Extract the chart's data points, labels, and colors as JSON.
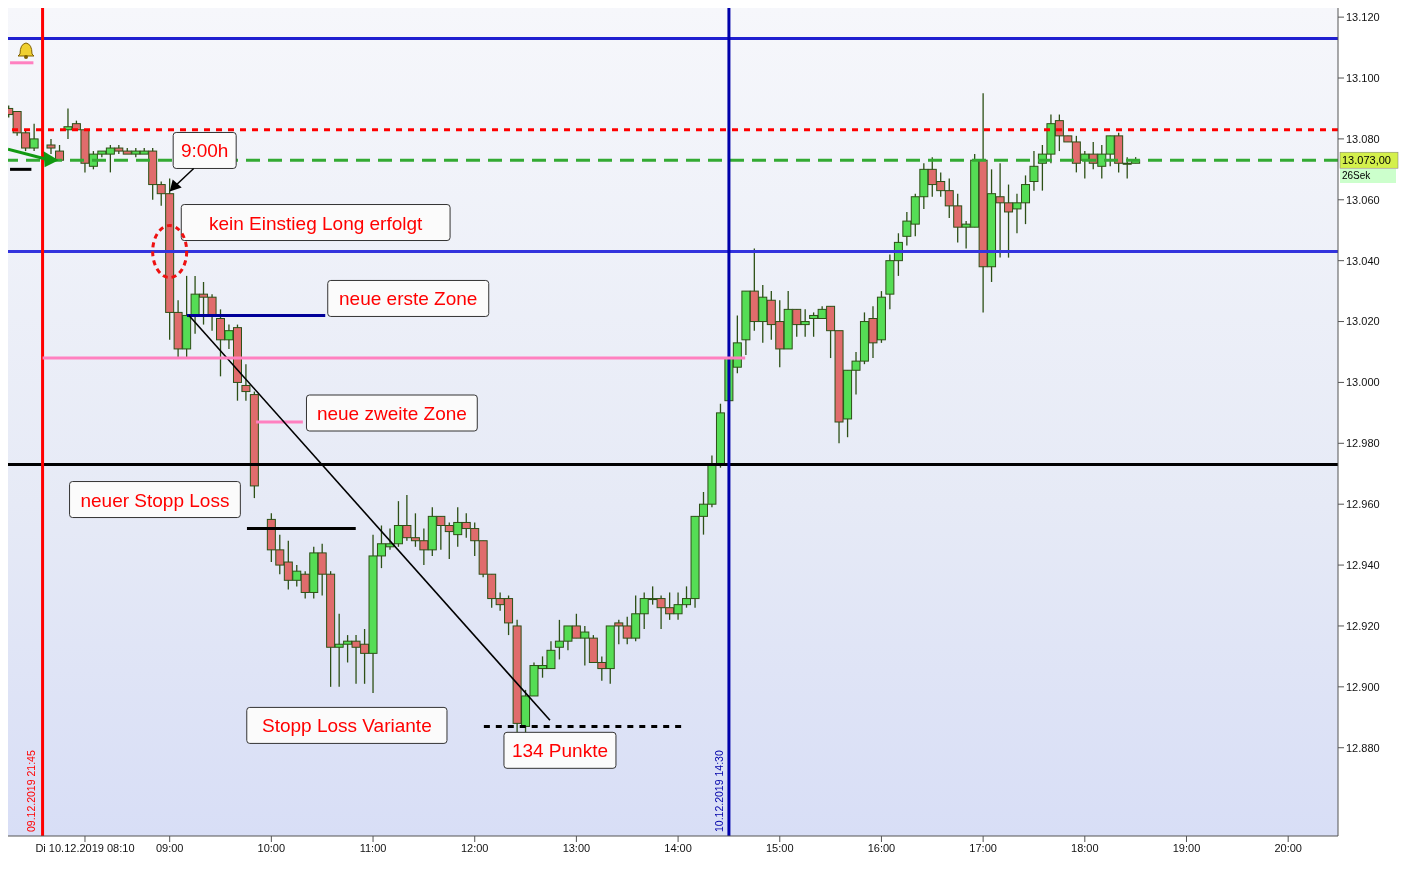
{
  "chart_data": {
    "type": "candlestick",
    "x": [
      7.417,
      7.5,
      7.583,
      7.667,
      7.833,
      7.917,
      8,
      8.083,
      8.167,
      8.25,
      8.333,
      8.417,
      8.5,
      8.583,
      8.667,
      8.75,
      8.833,
      8.917,
      9,
      9.083,
      9.167,
      9.25,
      9.333,
      9.417,
      9.5,
      9.583,
      9.667,
      9.75,
      9.833,
      10,
      10.083,
      10.167,
      10.25,
      10.333,
      10.417,
      10.5,
      10.583,
      10.667,
      10.75,
      10.833,
      10.917,
      11,
      11.083,
      11.167,
      11.25,
      11.333,
      11.417,
      11.5,
      11.583,
      11.667,
      11.75,
      11.833,
      11.917,
      12,
      12.083,
      12.167,
      12.25,
      12.333,
      12.417,
      12.5,
      12.583,
      12.667,
      12.75,
      12.833,
      12.917,
      13,
      13.083,
      13.167,
      13.25,
      13.333,
      13.417,
      13.5,
      13.583,
      13.667,
      13.75,
      13.833,
      13.917,
      14,
      14.083,
      14.167,
      14.25,
      14.333,
      14.417,
      14.5,
      14.583,
      14.667,
      14.75,
      14.833,
      14.917,
      15,
      15.083,
      15.167,
      15.25,
      15.333,
      15.417,
      15.5,
      15.583,
      15.667,
      15.75,
      15.833,
      15.917,
      16,
      16.083,
      16.167,
      16.25,
      16.333,
      16.417,
      16.5,
      16.583,
      16.667,
      16.75,
      16.833,
      16.917,
      17,
      17.083,
      17.167,
      17.25,
      17.333,
      17.417,
      17.5,
      17.583,
      17.667,
      17.75,
      17.833,
      17.917,
      18,
      18.083,
      18.167,
      18.25,
      18.333,
      18.417,
      18.5
    ],
    "ohlc": [
      [
        13090,
        13091,
        13087,
        13088
      ],
      [
        13089,
        13089,
        13081,
        13082
      ],
      [
        13082,
        13083,
        13076,
        13077
      ],
      [
        13077,
        13085,
        13076,
        13080
      ],
      [
        13078,
        13080,
        13075,
        13077
      ],
      [
        13076,
        13078,
        13073,
        13073
      ],
      [
        13083,
        13090,
        13080,
        13084
      ],
      [
        13085,
        13086,
        13083,
        13083
      ],
      [
        13083,
        13083,
        13069,
        13072
      ],
      [
        13071,
        13076,
        13070,
        13075
      ],
      [
        13075,
        13076,
        13074,
        13076
      ],
      [
        13075,
        13078,
        13069,
        13077
      ],
      [
        13077,
        13078,
        13075,
        13076
      ],
      [
        13076,
        13077,
        13075,
        13075
      ],
      [
        13075,
        13077,
        13074,
        13076
      ],
      [
        13075,
        13077,
        13075,
        13076
      ],
      [
        13076,
        13077,
        13060,
        13065
      ],
      [
        13065,
        13066,
        13058,
        13062
      ],
      [
        13062,
        13067,
        13014,
        13023
      ],
      [
        13023,
        13027,
        13008,
        13011
      ],
      [
        13011,
        13035,
        13008,
        13022
      ],
      [
        13022,
        13035,
        13016,
        13029
      ],
      [
        13029,
        13033,
        13019,
        13028
      ],
      [
        13028,
        13029,
        13017,
        13022
      ],
      [
        13021,
        13024,
        13002,
        13014
      ],
      [
        13014,
        13019,
        13011,
        13017
      ],
      [
        13018,
        13019,
        12994,
        13000
      ],
      [
        12999,
        13006,
        12994,
        12997
      ],
      [
        12996,
        12997,
        12962,
        12966
      ],
      [
        12955,
        12957,
        12941,
        12945
      ],
      [
        12945,
        12950,
        12937,
        12940
      ],
      [
        12941,
        12948,
        12932,
        12935
      ],
      [
        12935,
        12940,
        12933,
        12938
      ],
      [
        12937,
        12938,
        12929,
        12931
      ],
      [
        12931,
        12946,
        12929,
        12944
      ],
      [
        12944,
        12947,
        12930,
        12937
      ],
      [
        12937,
        12938,
        12900,
        12913
      ],
      [
        12913,
        12924,
        12900,
        12914
      ],
      [
        12914,
        12917,
        12908,
        12915
      ],
      [
        12915,
        12917,
        12901,
        12913
      ],
      [
        12914,
        12919,
        12901,
        12911
      ],
      [
        12911,
        12950,
        12898,
        12943
      ],
      [
        12943,
        12953,
        12939,
        12947
      ],
      [
        12946,
        12952,
        12945,
        12947
      ],
      [
        12947,
        12961,
        12946,
        12953
      ],
      [
        12953,
        12963,
        12948,
        12949
      ],
      [
        12949,
        12957,
        12946,
        12948
      ],
      [
        12948,
        12952,
        12940,
        12945
      ],
      [
        12945,
        12959,
        12943,
        12956
      ],
      [
        12956,
        12956,
        12945,
        12953
      ],
      [
        12953,
        12954,
        12942,
        12951
      ],
      [
        12950,
        12959,
        12946,
        12954
      ],
      [
        12954,
        12957,
        12949,
        12952
      ],
      [
        12952,
        12954,
        12943,
        12948
      ],
      [
        12948,
        12948,
        12936,
        12937
      ],
      [
        12937,
        12937,
        12926,
        12929
      ],
      [
        12929,
        12931,
        12925,
        12927
      ],
      [
        12929,
        12930,
        12917,
        12921
      ],
      [
        12920,
        12922,
        12885,
        12888
      ],
      [
        12887,
        12899,
        12885,
        12897
      ],
      [
        12897,
        12908,
        12897,
        12907
      ],
      [
        12906,
        12910,
        12903,
        12907
      ],
      [
        12906,
        12915,
        12906,
        12912
      ],
      [
        12913,
        12922,
        12909,
        12915
      ],
      [
        12915,
        12920,
        12912,
        12920
      ],
      [
        12920,
        12924,
        12916,
        12916
      ],
      [
        12916,
        12920,
        12907,
        12918
      ],
      [
        12916,
        12917,
        12908,
        12908
      ],
      [
        12908,
        12910,
        12902,
        12906
      ],
      [
        12906,
        12920,
        12901,
        12920
      ],
      [
        12921,
        12922,
        12914,
        12920
      ],
      [
        12920,
        12923,
        12914,
        12916
      ],
      [
        12916,
        12930,
        12915,
        12924
      ],
      [
        12924,
        12931,
        12919,
        12929
      ],
      [
        12929,
        12933,
        12927,
        12929
      ],
      [
        12929,
        12930,
        12919,
        12926
      ],
      [
        12926,
        12931,
        12922,
        12924
      ],
      [
        12924,
        12931,
        12922,
        12927
      ],
      [
        12927,
        12933,
        12926,
        12929
      ],
      [
        12929,
        12956,
        12926,
        12956
      ],
      [
        12956,
        12964,
        12950,
        12960
      ],
      [
        12960,
        12976,
        12959,
        12973
      ],
      [
        12973,
        12993,
        12972,
        12990
      ],
      [
        12994,
        13008,
        12994,
        13008
      ],
      [
        13005,
        13022,
        13003,
        13013
      ],
      [
        13014,
        13030,
        13009,
        13030
      ],
      [
        13030,
        13044,
        13017,
        13020
      ],
      [
        13020,
        13032,
        13013,
        13028
      ],
      [
        13027,
        13030,
        13014,
        13019
      ],
      [
        13020,
        13027,
        13005,
        13011
      ],
      [
        13011,
        13030,
        13011,
        13024
      ],
      [
        13024,
        13024,
        13015,
        13019
      ],
      [
        13019,
        13024,
        13015,
        13020
      ],
      [
        13021,
        13023,
        13015,
        13022
      ],
      [
        13021,
        13025,
        13021,
        13024
      ],
      [
        13025,
        13025,
        13008,
        13017
      ],
      [
        13017,
        13017,
        12980,
        12987
      ],
      [
        12988,
        13004,
        12982,
        13004
      ],
      [
        13004,
        13010,
        12996,
        13007
      ],
      [
        13007,
        13023,
        13006,
        13020
      ],
      [
        13021,
        13025,
        13008,
        13013
      ],
      [
        13014,
        13030,
        13013,
        13028
      ],
      [
        13029,
        13042,
        13024,
        13040
      ],
      [
        13040,
        13049,
        13035,
        13046
      ],
      [
        13048,
        13056,
        13045,
        13053
      ],
      [
        13052,
        13062,
        13048,
        13061
      ],
      [
        13061,
        13072,
        13057,
        13070
      ],
      [
        13070,
        13074,
        13061,
        13065
      ],
      [
        13066,
        13069,
        13061,
        13063
      ],
      [
        13063,
        13067,
        13054,
        13058
      ],
      [
        13058,
        13062,
        13046,
        13051
      ],
      [
        13051,
        13053,
        13044,
        13052
      ],
      [
        13051,
        13075,
        13051,
        13073
      ],
      [
        13073,
        13095,
        13023,
        13038
      ],
      [
        13038,
        13070,
        13033,
        13062
      ],
      [
        13061,
        13072,
        13041,
        13059
      ],
      [
        13059,
        13065,
        13041,
        13056
      ],
      [
        13057,
        13062,
        13049,
        13059
      ],
      [
        13059,
        13068,
        13052,
        13065
      ],
      [
        13066,
        13076,
        13063,
        13071
      ],
      [
        13072,
        13078,
        13063,
        13075
      ],
      [
        13075,
        13088,
        13072,
        13085
      ],
      [
        13086,
        13088,
        13076,
        13081
      ],
      [
        13081,
        13081,
        13079,
        13079
      ],
      [
        13079,
        13081,
        13069,
        13072
      ],
      [
        13073,
        13076,
        13067,
        13075
      ],
      [
        13075,
        13079,
        13070,
        13072
      ],
      [
        13071,
        13078,
        13067,
        13075
      ],
      [
        13075,
        13081,
        13071,
        13081
      ],
      [
        13081,
        13082,
        13069,
        13072
      ],
      [
        13072,
        13074,
        13067,
        13072
      ],
      [
        13072,
        13074,
        13072,
        13073
      ]
    ],
    "series": [
      {
        "type": "line",
        "x": [
          9.17,
          10.53
        ],
        "values": [
          13022,
          13022
        ],
        "color": "#000099"
      },
      {
        "type": "line",
        "x": [
          9.85,
          10.31
        ],
        "values": [
          12987,
          12987
        ],
        "color": "#ff80c0"
      },
      {
        "type": "line",
        "x": [
          9.76,
          10.83
        ],
        "values": [
          12952,
          12952
        ],
        "color": "#000000"
      },
      {
        "type": "line",
        "x": [
          12.09,
          14.03
        ],
        "values": [
          12887,
          12887
        ],
        "color": "#000000",
        "line_style": "dotted"
      },
      {
        "type": "line",
        "x": [
          9.19,
          12.74
        ],
        "values": [
          13022,
          12889
        ],
        "color": "#000000"
      },
      {
        "type": "line",
        "x": [
          7.43,
          7.66
        ],
        "values": [
          13105,
          13105
        ],
        "color": "#ff80c0"
      },
      {
        "type": "line",
        "x": [
          7.43,
          7.64
        ],
        "values": [
          13070,
          13070
        ],
        "color": "#000000"
      },
      {
        "type": "line",
        "x": [
          7.75,
          14.66
        ],
        "values": [
          13008,
          13008
        ],
        "color": "#ff80c0"
      }
    ],
    "ref_lines": [
      {
        "axis": "y",
        "value": 13113,
        "color": "#2020d0"
      },
      {
        "axis": "y",
        "value": 13083,
        "color": "#ff0000",
        "line_style": "dotted"
      },
      {
        "axis": "y",
        "value": 13073,
        "color": "#33aa33",
        "line_style": "dashed",
        "label": "13.073,00"
      },
      {
        "axis": "y",
        "value": 13043,
        "color": "#3333dd"
      },
      {
        "axis": "y",
        "value": 12973,
        "color": "#000000"
      },
      {
        "axis": "x",
        "value": 7.75,
        "color": "#ff0000"
      },
      {
        "axis": "x",
        "value": 14.5,
        "color": "#0000aa",
        "label": "10.12.2019 14:30"
      }
    ],
    "annotations": [
      {
        "text": "9:00h",
        "x": 9,
        "y": 13067
      },
      {
        "text": "kein Einstieg Long erfolgt",
        "x": 9,
        "y": 13043
      },
      {
        "text": "neue erste Zone",
        "x": 10.53,
        "y": 13022
      },
      {
        "text": "neue zweite Zone",
        "x": 10.31,
        "y": 12987
      },
      {
        "text": "neuer Stopp Loss",
        "x": 9.76,
        "y": 12952
      },
      {
        "text": "Stopp Loss Variante",
        "x": 12.09,
        "y": 12887
      },
      {
        "text": "134 Punkte",
        "x": 12.74,
        "y": 12889
      },
      "09.12.2019 21:45",
      "26Sek"
    ],
    "xlim": [
      7.41,
      20.49
    ],
    "xticks": [
      {
        "value": 8.167,
        "label": "Di 10.12.2019 08:10"
      },
      {
        "value": 9,
        "label": "09:00"
      },
      {
        "value": 10,
        "label": "10:00"
      },
      {
        "value": 11,
        "label": "11:00"
      },
      {
        "value": 12,
        "label": "12:00"
      },
      {
        "value": 13,
        "label": "13:00"
      },
      {
        "value": 14,
        "label": "14:00"
      },
      {
        "value": 15,
        "label": "15:00"
      },
      {
        "value": 16,
        "label": "16:00"
      },
      {
        "value": 17,
        "label": "17:00"
      },
      {
        "value": 18,
        "label": "18:00"
      },
      {
        "value": 19,
        "label": "19:00"
      },
      {
        "value": 20,
        "label": "20:00"
      }
    ],
    "ylim": [
      12851,
      13123
    ],
    "yticks": [
      {
        "value": 12880,
        "label": "12.880"
      },
      {
        "value": 12900,
        "label": "12.900"
      },
      {
        "value": 12920,
        "label": "12.920"
      },
      {
        "value": 12940,
        "label": "12.940"
      },
      {
        "value": 12960,
        "label": "12.960"
      },
      {
        "value": 12980,
        "label": "12.980"
      },
      {
        "value": 13000,
        "label": "13.000"
      },
      {
        "value": 13020,
        "label": "13.020"
      },
      {
        "value": 13040,
        "label": "13.040"
      },
      {
        "value": 13060,
        "label": "13.060"
      },
      {
        "value": 13080,
        "label": "13.080"
      },
      {
        "value": 13100,
        "label": "13.100"
      },
      {
        "value": 13120,
        "label": "13.120"
      }
    ]
  }
}
